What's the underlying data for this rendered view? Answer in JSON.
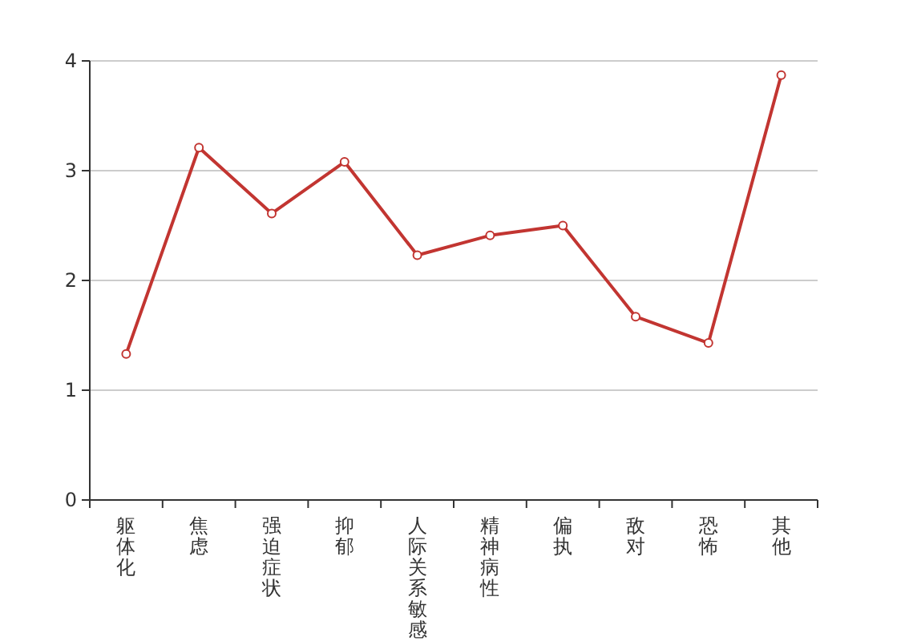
{
  "chart_data": {
    "type": "line",
    "categories": [
      "躯体化",
      "焦虑",
      "强迫症状",
      "抑郁",
      "人际关系敏感",
      "精神病性",
      "偏执",
      "敌对",
      "恐怖",
      "其他"
    ],
    "series": [
      {
        "color": "#c23531",
        "values": [
          1.33,
          3.21,
          2.61,
          3.08,
          2.23,
          2.41,
          2.5,
          1.67,
          1.43,
          3.87
        ]
      }
    ],
    "ylim": [
      0,
      4
    ],
    "yticks": [
      0,
      1,
      2,
      3,
      4
    ],
    "grid": "y",
    "marker": "circle",
    "line_style": "solid"
  }
}
